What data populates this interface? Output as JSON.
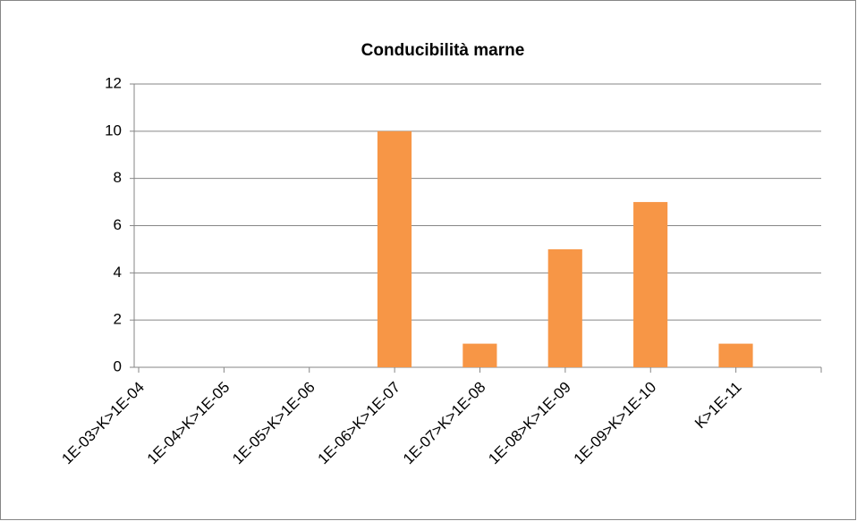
{
  "chart_data": {
    "type": "bar",
    "title": "Conducibilità marne",
    "categories": [
      "1E-03>K>1E-04",
      "1E-04>K>1E-05",
      "1E-05>K>1E-06",
      "1E-06>K>1E-07",
      "1E-07>K>1E-08",
      "1E-08>K>1E-09",
      "1E-09>K>1E-10",
      "K>1E-11"
    ],
    "values": [
      0,
      0,
      0,
      10,
      1,
      5,
      7,
      1
    ],
    "color": "#f79646",
    "ylim": [
      0,
      12
    ],
    "yticks": [
      0,
      2,
      4,
      6,
      8,
      10,
      12
    ],
    "grid": true
  }
}
